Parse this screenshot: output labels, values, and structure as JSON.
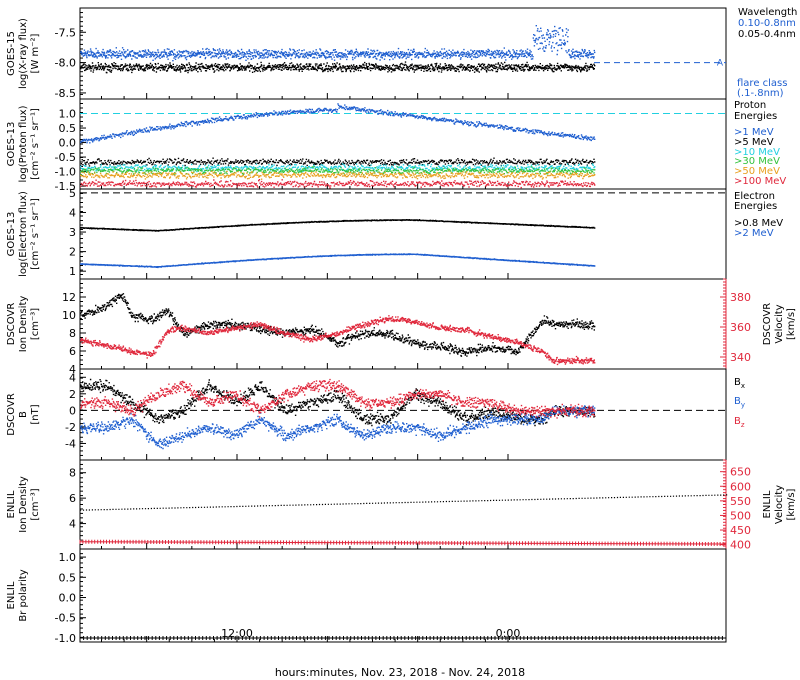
{
  "xlabel": "hours:minutes, Nov. 23, 2018 - Nov. 24, 2018",
  "x_ticks": [
    "12:00",
    "0:00"
  ],
  "colors": {
    "black": "#000000",
    "blue": "#1f5fd0",
    "cyan": "#22d0e0",
    "green": "#33c33d",
    "orange": "#e8a020",
    "red": "#e0283c",
    "yellow": "#d8d800",
    "navy": "#2060d0"
  },
  "panels": [
    {
      "id": "goes15-xray",
      "ylabel": [
        "GOES-15",
        "log(X-ray flux)",
        "[W m⁻²]"
      ],
      "yticks": [
        "-7.5",
        "-8.0",
        "-8.5"
      ],
      "legend": [
        "Wavelength",
        "0.10-0.8nm",
        "0.05-0.4nm",
        "flare class",
        "(.1-.8nm)"
      ],
      "flare_marker": "A",
      "chart_data": {
        "type": "scatter",
        "ylim": [
          -8.6,
          -7.1
        ],
        "series": [
          {
            "name": "0.10-0.8nm",
            "level": -7.85,
            "spread": 0.06,
            "color": "blue",
            "late_jump": -7.6
          },
          {
            "name": "0.05-0.4nm",
            "level": -8.07,
            "spread": 0.05,
            "color": "black"
          }
        ],
        "reference_line": -8.0
      }
    },
    {
      "id": "goes13-proton",
      "ylabel": [
        "GOES-13",
        "log(Proton flux)",
        "[cm⁻² s⁻¹ sr⁻¹]"
      ],
      "yticks": [
        "1.0",
        "0.5",
        "0.0",
        "-0.5",
        "-1.0",
        "-1.5"
      ],
      "legend": [
        "Proton",
        "Energies",
        ">1 MeV",
        ">5 MeV",
        ">10 MeV",
        ">30 MeV",
        ">50 MeV",
        ">100 MeV"
      ],
      "chart_data": {
        "type": "scatter",
        "ylim": [
          -1.6,
          1.5
        ],
        "reference_line": 1.0,
        "series": [
          {
            "name": ">1 MeV",
            "color": "blue",
            "start": 0.05,
            "peak": 1.15,
            "end": 0.15
          },
          {
            "name": ">5 MeV",
            "color": "black",
            "level": -0.65
          },
          {
            "name": ">10 MeV",
            "color": "cyan",
            "level": -0.85
          },
          {
            "name": ">30 MeV",
            "color": "green",
            "level": -0.95
          },
          {
            "name": ">50 MeV",
            "color": "orange",
            "level": -1.1
          },
          {
            "name": ">100 MeV",
            "color": "red",
            "level": -1.4
          }
        ]
      }
    },
    {
      "id": "goes13-electron",
      "ylabel": [
        "GOES-13",
        "log(Electron flux)",
        "[cm⁻² s⁻¹ sr⁻¹]"
      ],
      "yticks": [
        "5",
        "4",
        "3",
        "2",
        "1"
      ],
      "legend": [
        "Electron",
        "Energies",
        ">0.8 MeV",
        ">2 MeV"
      ],
      "chart_data": {
        "type": "line",
        "ylim": [
          0.6,
          5.2
        ],
        "reference_line": 5.0,
        "series": [
          {
            "name": ">0.8 MeV",
            "color": "black",
            "start": 3.25,
            "dip": 3.1,
            "peak": 3.65,
            "end": 3.25
          },
          {
            "name": ">2 MeV",
            "color": "blue",
            "start": 1.4,
            "dip": 1.25,
            "peak": 1.9,
            "end": 1.3
          }
        ]
      }
    },
    {
      "id": "dscovr-density-velocity",
      "ylabel": [
        "DSCOVR",
        "Ion Density",
        "[cm⁻³]"
      ],
      "ylabel_right": [
        "DSCOVR",
        "Velocity",
        "[km/s]"
      ],
      "yticks": [
        "12",
        "10",
        "8",
        "6",
        "4"
      ],
      "yticks_right": [
        "380",
        "360",
        "340"
      ],
      "chart_data": {
        "type": "scatter",
        "ylim": [
          4,
          14
        ],
        "ylim_right": [
          332,
          392
        ],
        "x": [
          0,
          0.05,
          0.08,
          0.1,
          0.14,
          0.17,
          0.2,
          0.25,
          0.3,
          0.35,
          0.4,
          0.45,
          0.5,
          0.55,
          0.6,
          0.65,
          0.7,
          0.75,
          0.8,
          0.85,
          0.9,
          0.92
        ],
        "density": [
          10,
          11,
          12.5,
          10,
          9.5,
          10.5,
          8,
          9,
          9,
          8.5,
          8,
          8.5,
          7,
          8,
          8,
          7,
          6.5,
          6,
          6.5,
          6,
          9.5,
          9
        ],
        "velocity": [
          352,
          348,
          346,
          344,
          342,
          358,
          360,
          356,
          360,
          362,
          356,
          352,
          356,
          362,
          366,
          364,
          360,
          358,
          354,
          350,
          344,
          338
        ]
      }
    },
    {
      "id": "dscovr-b",
      "ylabel": [
        "DSCOVR",
        "B",
        "[nT]"
      ],
      "yticks": [
        "4",
        "2",
        "0",
        "-2",
        "-4"
      ],
      "legend": [
        "Bx",
        "By",
        "Bz"
      ],
      "chart_data": {
        "type": "scatter",
        "ylim": [
          -6,
          5
        ],
        "reference_line": 0,
        "x": [
          0,
          0.05,
          0.1,
          0.15,
          0.2,
          0.25,
          0.3,
          0.35,
          0.4,
          0.45,
          0.5,
          0.55,
          0.6,
          0.65,
          0.7,
          0.75,
          0.8,
          0.85,
          0.9,
          0.92
        ],
        "series": [
          {
            "name": "Bx",
            "color": "black",
            "values": [
              3,
              3,
              1,
              -1,
              0,
              3,
              1,
              3,
              0,
              1,
              2,
              -1,
              -1,
              2,
              1,
              -1,
              0,
              -1,
              -1,
              0
            ]
          },
          {
            "name": "By",
            "color": "blue",
            "values": [
              -2,
              -2,
              -1,
              -4,
              -3,
              -2,
              -3,
              -1,
              -3,
              -2,
              -1,
              -3,
              -2,
              -2,
              -3,
              -2,
              -1,
              -1,
              -1,
              0
            ]
          },
          {
            "name": "Bz",
            "color": "red",
            "values": [
              1,
              1,
              0,
              2,
              3,
              1,
              2,
              0,
              2,
              3,
              3,
              1,
              1,
              2,
              2,
              1,
              1,
              0,
              0,
              0
            ]
          }
        ]
      }
    },
    {
      "id": "enlil-density-velocity",
      "ylabel": [
        "ENLIL",
        "Ion Density",
        "[cm⁻³]"
      ],
      "ylabel_right": [
        "ENLIL",
        "Velocity",
        "[km/s]"
      ],
      "yticks": [
        "8",
        "6",
        "4"
      ],
      "yticks_right": [
        "650",
        "600",
        "550",
        "500",
        "450",
        "400"
      ],
      "chart_data": {
        "type": "line",
        "ylim": [
          2,
          9
        ],
        "ylim_right": [
          385,
          690
        ],
        "density_start": 5.1,
        "density_end": 6.3,
        "velocity_start": 410,
        "velocity_end": 402
      }
    },
    {
      "id": "enlil-polarity",
      "ylabel": [
        "ENLIL",
        "Br polarity"
      ],
      "yticks": [
        "1.0",
        "0.5",
        "0.0",
        "-0.5",
        "-1.0"
      ],
      "chart_data": {
        "type": "line",
        "ylim": [
          -1.1,
          1.2
        ],
        "value": -1.0
      }
    }
  ]
}
